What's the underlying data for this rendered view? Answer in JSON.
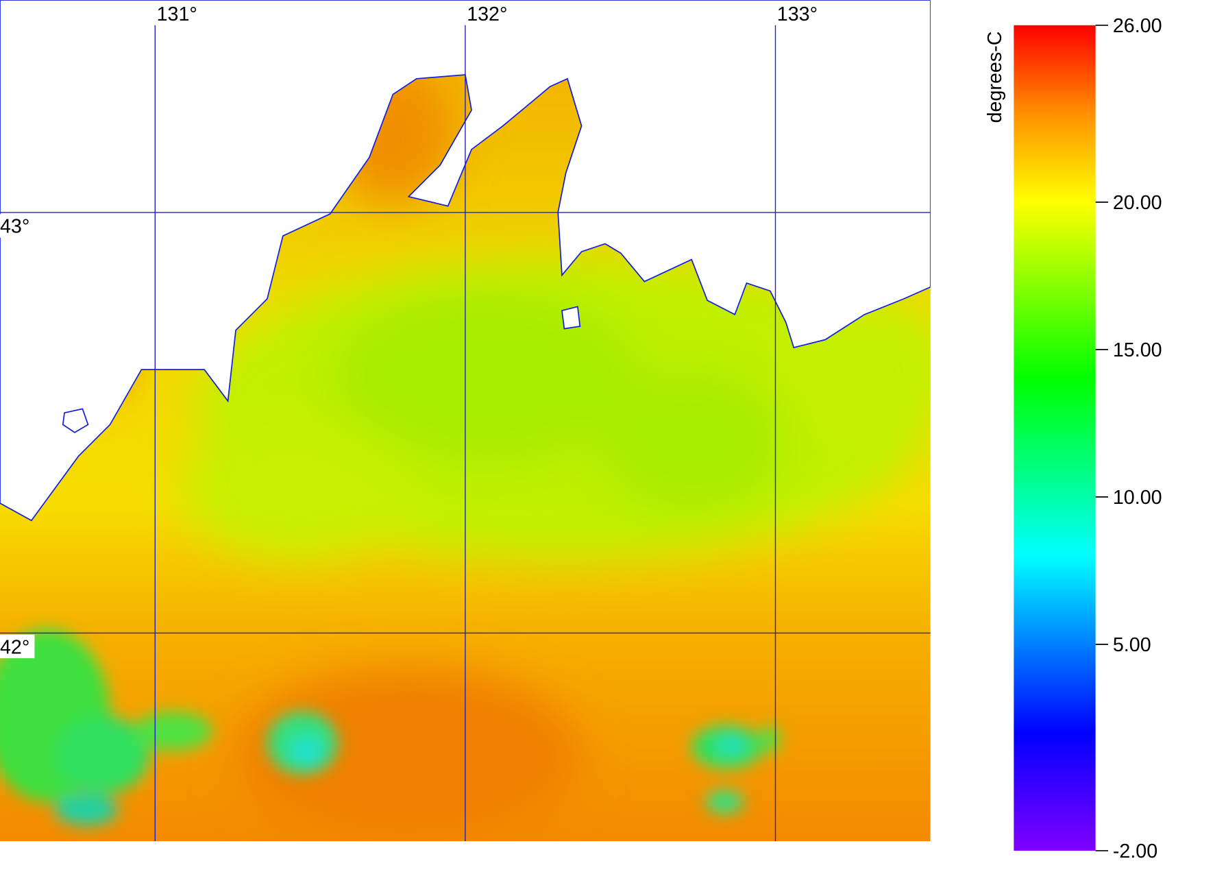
{
  "map": {
    "xlim": [
      130.5,
      133.5
    ],
    "ylim": [
      41.505,
      43.505
    ],
    "lon_lines": [
      {
        "value": 131,
        "label": "131°"
      },
      {
        "value": 132,
        "label": "132°"
      },
      {
        "value": 133,
        "label": "133°"
      }
    ],
    "lat_lines": [
      {
        "value": 43,
        "label": "43°"
      },
      {
        "value": 42,
        "label": "42°"
      }
    ],
    "grid_color": "#2020c0",
    "colorbar": {
      "label": "degrees-C",
      "lim": [
        -2,
        26
      ],
      "ticks": [
        {
          "value": 26,
          "label": "26.00"
        },
        {
          "value": 20,
          "label": "20.00"
        },
        {
          "value": 15,
          "label": "15.00"
        },
        {
          "value": 10,
          "label": "10.00"
        },
        {
          "value": 5,
          "label": "5.00"
        },
        {
          "value": -2,
          "label": "-2.00"
        }
      ],
      "color_stops": [
        [
          -2,
          "#8000ff"
        ],
        [
          2,
          "#0000ff"
        ],
        [
          8,
          "#00ffff"
        ],
        [
          14,
          "#00ff00"
        ],
        [
          20,
          "#ffff00"
        ],
        [
          23,
          "#ff9000"
        ],
        [
          26,
          "#ff0000"
        ]
      ]
    }
  }
}
